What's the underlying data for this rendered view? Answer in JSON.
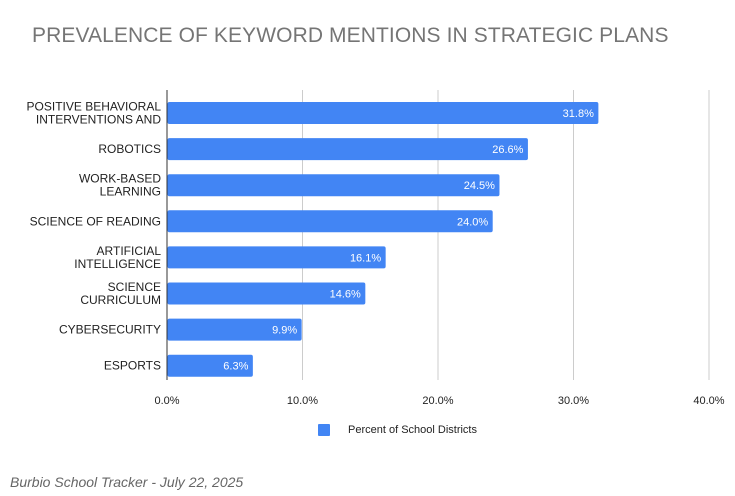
{
  "chart_data": {
    "type": "bar",
    "orientation": "horizontal",
    "title": "PREVALENCE OF KEYWORD MENTIONS IN STRATEGIC PLANS",
    "categories": [
      [
        "POSITIVE BEHAVIORAL",
        "INTERVENTIONS AND"
      ],
      [
        "ROBOTICS"
      ],
      [
        "WORK-BASED",
        "LEARNING"
      ],
      [
        "SCIENCE OF READING"
      ],
      [
        "ARTIFICIAL",
        "INTELLIGENCE"
      ],
      [
        "SCIENCE",
        "CURRICULUM"
      ],
      [
        "CYBERSECURITY"
      ],
      [
        "ESPORTS"
      ]
    ],
    "series": [
      {
        "name": "Percent of School Districts",
        "values": [
          31.8,
          26.6,
          24.5,
          24.0,
          16.1,
          14.6,
          9.9,
          6.3
        ],
        "value_labels": [
          "31.8%",
          "26.6%",
          "24.5%",
          "24.0%",
          "16.1%",
          "14.6%",
          "9.9%",
          "6.3%"
        ]
      }
    ],
    "xlim": [
      0,
      40
    ],
    "x_ticks": [
      0,
      10,
      20,
      30,
      40
    ],
    "x_tick_labels": [
      "0.0%",
      "10.0%",
      "20.0%",
      "30.0%",
      "40.0%"
    ],
    "xlabel": "",
    "ylabel": "",
    "grid": true,
    "legend_position": "bottom",
    "bar_color": "#4285f4"
  },
  "source_note": "Burbio School Tracker - July 22, 2025"
}
